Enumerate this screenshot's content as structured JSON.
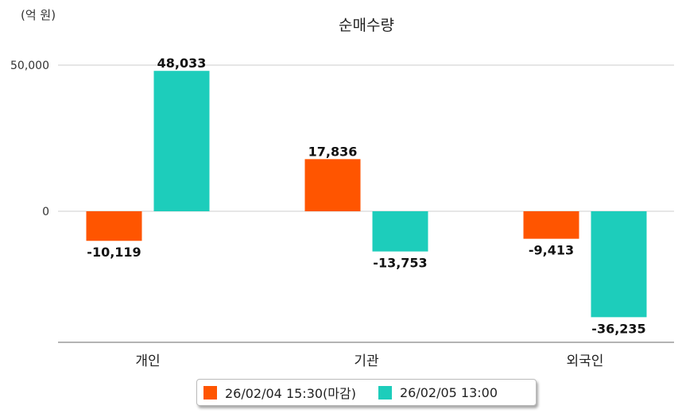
{
  "chart_data": {
    "type": "bar",
    "title": "순매수량",
    "unit_label": "(억 원)",
    "categories": [
      "개인",
      "기관",
      "외국인"
    ],
    "series": [
      {
        "name": "26/02/04 15:30(마감)",
        "color": "#FF5500",
        "values": [
          -10119,
          17836,
          -9413
        ],
        "labels": [
          "-10,119",
          "17,836",
          "-9,413"
        ]
      },
      {
        "name": "26/02/05 13:00",
        "color": "#1DCDBB",
        "values": [
          48033,
          -13753,
          -36235
        ],
        "labels": [
          "48,033",
          "-13,753",
          "-36,235"
        ]
      }
    ],
    "yticks": [
      0,
      50000
    ],
    "ytick_labels": [
      "0",
      "50,000"
    ],
    "ylim": [
      -45000,
      50000
    ],
    "grid": true,
    "legend_position": "bottom"
  }
}
